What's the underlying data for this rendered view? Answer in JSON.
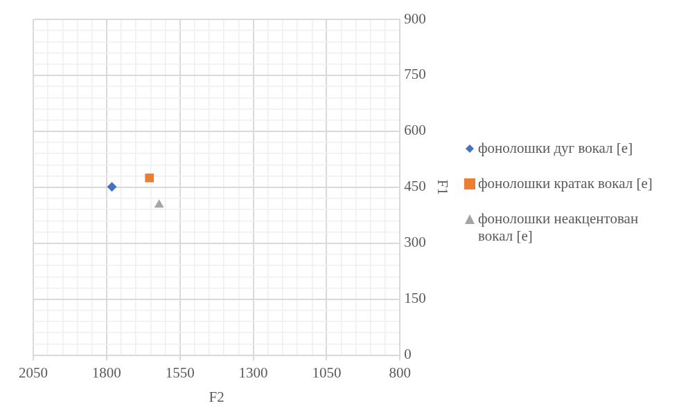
{
  "chart_data": {
    "type": "scatter",
    "xlabel": "F2",
    "ylabel": "F1",
    "xlim": [
      2050,
      800
    ],
    "ylim": [
      0,
      900
    ],
    "xticks": [
      800,
      {
        "value": 850,
        "label": null
      },
      {
        "value": 900,
        "label": null
      },
      {
        "value": 950,
        "label": null
      },
      {
        "value": 1000,
        "label": null
      },
      1050,
      {
        "value": 1100,
        "label": null
      },
      {
        "value": 1150,
        "label": null
      },
      {
        "value": 1200,
        "label": null
      },
      {
        "value": 1250,
        "label": null
      },
      1300,
      {
        "value": 1350,
        "label": null
      },
      {
        "value": 1400,
        "label": null
      },
      {
        "value": 1450,
        "label": null
      },
      {
        "value": 1500,
        "label": null
      },
      1550,
      {
        "value": 1600,
        "label": null
      },
      {
        "value": 1650,
        "label": null
      },
      {
        "value": 1700,
        "label": null
      },
      {
        "value": 1750,
        "label": null
      },
      1800,
      {
        "value": 1850,
        "label": null
      },
      {
        "value": 1900,
        "label": null
      },
      {
        "value": 1950,
        "label": null
      },
      {
        "value": 2000,
        "label": null
      },
      2050
    ],
    "yticks": [
      0,
      {
        "value": 30,
        "label": null
      },
      {
        "value": 60,
        "label": null
      },
      {
        "value": 90,
        "label": null
      },
      {
        "value": 120,
        "label": null
      },
      150,
      {
        "value": 180,
        "label": null
      },
      {
        "value": 210,
        "label": null
      },
      {
        "value": 240,
        "label": null
      },
      {
        "value": 270,
        "label": null
      },
      300,
      {
        "value": 330,
        "label": null
      },
      {
        "value": 360,
        "label": null
      },
      {
        "value": 390,
        "label": null
      },
      {
        "value": 420,
        "label": null
      },
      450,
      {
        "value": 480,
        "label": null
      },
      {
        "value": 510,
        "label": null
      },
      {
        "value": 540,
        "label": null
      },
      {
        "value": 570,
        "label": null
      },
      600,
      {
        "value": 630,
        "label": null
      },
      {
        "value": 660,
        "label": null
      },
      {
        "value": 690,
        "label": null
      },
      {
        "value": 720,
        "label": null
      },
      750,
      {
        "value": 780,
        "label": null
      },
      {
        "value": 810,
        "label": null
      },
      {
        "value": 840,
        "label": null
      },
      {
        "value": 870,
        "label": null
      },
      900
    ],
    "grid": true,
    "legend": "right",
    "series": [
      {
        "name": "фонолошки дуг вокал [е]",
        "color": "#4472c4",
        "marker": "diamond",
        "x": [
          1782
        ],
        "values": [
          451
        ]
      },
      {
        "name": "фонолошки кратак вокал [е]",
        "color": "#ed7d31",
        "marker": "square",
        "x": [
          1654
        ],
        "values": [
          475
        ]
      },
      {
        "name": "фонолошки неакцентован вокал [е]",
        "color": "#a5a5a5",
        "marker": "triangle",
        "x": [
          1621
        ],
        "values": [
          403
        ]
      }
    ]
  }
}
